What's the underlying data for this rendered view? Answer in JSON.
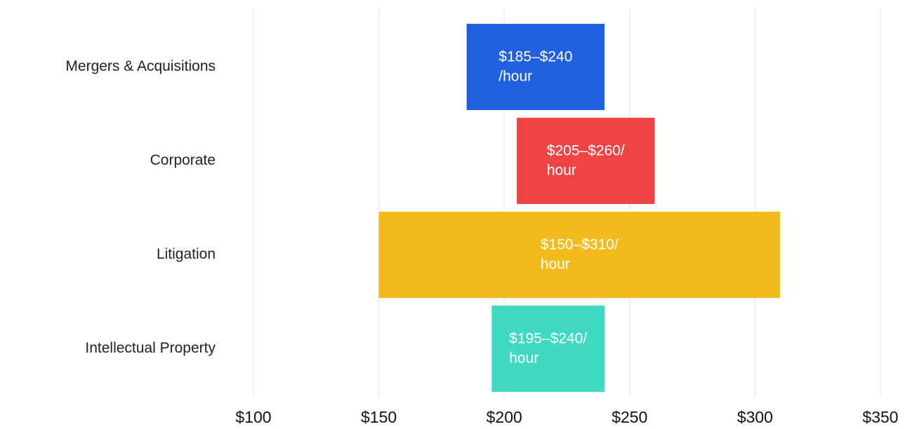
{
  "chart_data": {
    "type": "range_bar",
    "categories": [
      "Mergers & Acquisitions",
      "Corporate",
      "Litigation",
      "Intellectual Property"
    ],
    "low": [
      185,
      205,
      150,
      195
    ],
    "high": [
      240,
      260,
      310,
      240
    ],
    "value_labels": [
      [
        "$185–$240",
        "/hour"
      ],
      [
        "$205–$260/",
        "hour"
      ],
      [
        "$150–$310/",
        "hour"
      ],
      [
        "$195–$240/",
        "hour"
      ]
    ],
    "colors": [
      "#1f5fe0",
      "#ef4444",
      "#f2bb1f",
      "#40d9c2"
    ],
    "xlim": [
      100,
      350
    ],
    "xticks": [
      {
        "value": 100,
        "label": "$100"
      },
      {
        "value": 150,
        "label": "$150"
      },
      {
        "value": 200,
        "label": "$200"
      },
      {
        "value": 250,
        "label": "$250"
      },
      {
        "value": 300,
        "label": "$300"
      },
      {
        "value": 350,
        "label": "$350"
      }
    ],
    "grid": true
  }
}
